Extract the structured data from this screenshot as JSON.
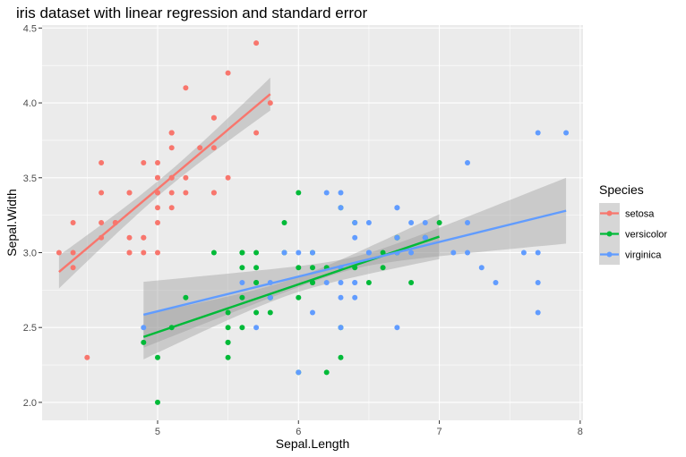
{
  "chart_data": {
    "type": "scatter",
    "title": "iris dataset with linear regression and standard error",
    "xlabel": "Sepal.Length",
    "ylabel": "Sepal.Width",
    "xlim": [
      4.18,
      8.02
    ],
    "ylim": [
      1.88,
      4.52
    ],
    "x_ticks": [
      5,
      6,
      7,
      8
    ],
    "y_ticks": [
      2.0,
      2.5,
      3.0,
      3.5,
      4.0,
      4.5
    ],
    "x_tick_labels": [
      "5",
      "6",
      "7",
      "8"
    ],
    "y_tick_labels": [
      "2.0",
      "2.5",
      "3.0",
      "3.5",
      "4.0",
      "4.5"
    ],
    "grid": true,
    "legend": {
      "title": "Species",
      "position": "right"
    },
    "series": [
      {
        "name": "setosa",
        "color": "#F8766D",
        "points": [
          [
            5.1,
            3.5
          ],
          [
            4.9,
            3.0
          ],
          [
            4.7,
            3.2
          ],
          [
            4.6,
            3.1
          ],
          [
            5.0,
            3.6
          ],
          [
            5.4,
            3.9
          ],
          [
            4.6,
            3.4
          ],
          [
            5.0,
            3.4
          ],
          [
            4.4,
            2.9
          ],
          [
            4.9,
            3.1
          ],
          [
            5.4,
            3.7
          ],
          [
            4.8,
            3.4
          ],
          [
            4.8,
            3.0
          ],
          [
            4.3,
            3.0
          ],
          [
            5.8,
            4.0
          ],
          [
            5.7,
            4.4
          ],
          [
            5.4,
            3.9
          ],
          [
            5.1,
            3.5
          ],
          [
            5.7,
            3.8
          ],
          [
            5.1,
            3.8
          ],
          [
            5.4,
            3.4
          ],
          [
            5.1,
            3.7
          ],
          [
            4.6,
            3.6
          ],
          [
            5.1,
            3.3
          ],
          [
            4.8,
            3.4
          ],
          [
            5.0,
            3.0
          ],
          [
            5.0,
            3.4
          ],
          [
            5.2,
            3.5
          ],
          [
            5.2,
            3.4
          ],
          [
            4.7,
            3.2
          ],
          [
            4.8,
            3.1
          ],
          [
            5.4,
            3.4
          ],
          [
            5.2,
            4.1
          ],
          [
            5.5,
            4.2
          ],
          [
            4.9,
            3.1
          ],
          [
            5.0,
            3.2
          ],
          [
            5.5,
            3.5
          ],
          [
            4.9,
            3.6
          ],
          [
            4.4,
            3.0
          ],
          [
            5.1,
            3.4
          ],
          [
            5.0,
            3.5
          ],
          [
            4.5,
            2.3
          ],
          [
            4.4,
            3.2
          ],
          [
            5.0,
            3.5
          ],
          [
            5.1,
            3.8
          ],
          [
            4.8,
            3.0
          ],
          [
            5.1,
            3.8
          ],
          [
            4.6,
            3.2
          ],
          [
            5.3,
            3.7
          ],
          [
            5.0,
            3.3
          ]
        ],
        "fit": {
          "x_range": [
            4.3,
            5.8
          ],
          "y_at_start": 2.871,
          "y_at_end": 4.059,
          "se_half_width_ends": 0.11,
          "se_half_width_mid": 0.05
        }
      },
      {
        "name": "versicolor",
        "color": "#00BA38",
        "points": [
          [
            7.0,
            3.2
          ],
          [
            6.4,
            3.2
          ],
          [
            6.9,
            3.1
          ],
          [
            5.5,
            2.3
          ],
          [
            6.5,
            2.8
          ],
          [
            5.7,
            2.8
          ],
          [
            6.3,
            3.3
          ],
          [
            4.9,
            2.4
          ],
          [
            6.6,
            2.9
          ],
          [
            5.2,
            2.7
          ],
          [
            5.0,
            2.0
          ],
          [
            5.9,
            3.0
          ],
          [
            6.0,
            2.2
          ],
          [
            6.1,
            2.9
          ],
          [
            5.6,
            2.9
          ],
          [
            6.7,
            3.1
          ],
          [
            5.6,
            3.0
          ],
          [
            5.8,
            2.7
          ],
          [
            6.2,
            2.2
          ],
          [
            5.6,
            2.5
          ],
          [
            5.9,
            3.2
          ],
          [
            6.1,
            2.8
          ],
          [
            6.3,
            2.5
          ],
          [
            6.1,
            2.8
          ],
          [
            6.4,
            2.9
          ],
          [
            6.6,
            3.0
          ],
          [
            6.8,
            2.8
          ],
          [
            6.7,
            3.0
          ],
          [
            6.0,
            2.9
          ],
          [
            5.7,
            2.6
          ],
          [
            5.5,
            2.4
          ],
          [
            5.5,
            2.4
          ],
          [
            5.8,
            2.7
          ],
          [
            6.0,
            2.7
          ],
          [
            5.4,
            3.0
          ],
          [
            6.0,
            3.4
          ],
          [
            6.7,
            3.1
          ],
          [
            6.3,
            2.3
          ],
          [
            5.6,
            3.0
          ],
          [
            5.5,
            2.5
          ],
          [
            5.5,
            2.6
          ],
          [
            6.1,
            3.0
          ],
          [
            5.8,
            2.6
          ],
          [
            5.0,
            2.3
          ],
          [
            5.6,
            2.7
          ],
          [
            5.7,
            3.0
          ],
          [
            5.7,
            2.9
          ],
          [
            6.2,
            2.9
          ],
          [
            5.1,
            2.5
          ],
          [
            5.7,
            2.8
          ]
        ],
        "fit": {
          "x_range": [
            4.9,
            7.0
          ],
          "y_at_start": 2.437,
          "y_at_end": 3.107,
          "se_half_width_ends": 0.15,
          "se_half_width_mid": 0.05
        }
      },
      {
        "name": "virginica",
        "color": "#619CFF",
        "points": [
          [
            6.3,
            3.3
          ],
          [
            5.8,
            2.7
          ],
          [
            7.1,
            3.0
          ],
          [
            6.3,
            2.9
          ],
          [
            6.5,
            3.0
          ],
          [
            7.6,
            3.0
          ],
          [
            4.9,
            2.5
          ],
          [
            7.3,
            2.9
          ],
          [
            6.7,
            2.5
          ],
          [
            7.2,
            3.6
          ],
          [
            6.5,
            3.2
          ],
          [
            6.4,
            2.7
          ],
          [
            6.8,
            3.0
          ],
          [
            5.7,
            2.5
          ],
          [
            5.8,
            2.8
          ],
          [
            6.4,
            3.2
          ],
          [
            6.5,
            3.0
          ],
          [
            7.7,
            3.8
          ],
          [
            7.7,
            2.6
          ],
          [
            6.0,
            2.2
          ],
          [
            6.9,
            3.2
          ],
          [
            5.6,
            2.8
          ],
          [
            7.7,
            2.8
          ],
          [
            6.3,
            2.7
          ],
          [
            6.7,
            3.3
          ],
          [
            7.2,
            3.2
          ],
          [
            6.2,
            2.8
          ],
          [
            6.1,
            3.0
          ],
          [
            6.4,
            2.8
          ],
          [
            7.2,
            3.0
          ],
          [
            7.4,
            2.8
          ],
          [
            7.9,
            3.8
          ],
          [
            6.4,
            2.8
          ],
          [
            6.3,
            2.8
          ],
          [
            6.1,
            2.6
          ],
          [
            7.7,
            3.0
          ],
          [
            6.3,
            3.4
          ],
          [
            6.4,
            3.1
          ],
          [
            6.0,
            3.0
          ],
          [
            6.9,
            3.1
          ],
          [
            6.7,
            3.1
          ],
          [
            6.9,
            3.1
          ],
          [
            5.8,
            2.7
          ],
          [
            6.8,
            3.2
          ],
          [
            6.7,
            3.3
          ],
          [
            6.7,
            3.0
          ],
          [
            6.3,
            2.5
          ],
          [
            6.5,
            3.0
          ],
          [
            6.2,
            3.4
          ],
          [
            5.9,
            3.0
          ]
        ],
        "fit": {
          "x_range": [
            4.9,
            7.9
          ],
          "y_at_start": 2.585,
          "y_at_end": 3.28,
          "se_half_width_ends": 0.22,
          "se_half_width_mid": 0.04
        }
      }
    ]
  }
}
